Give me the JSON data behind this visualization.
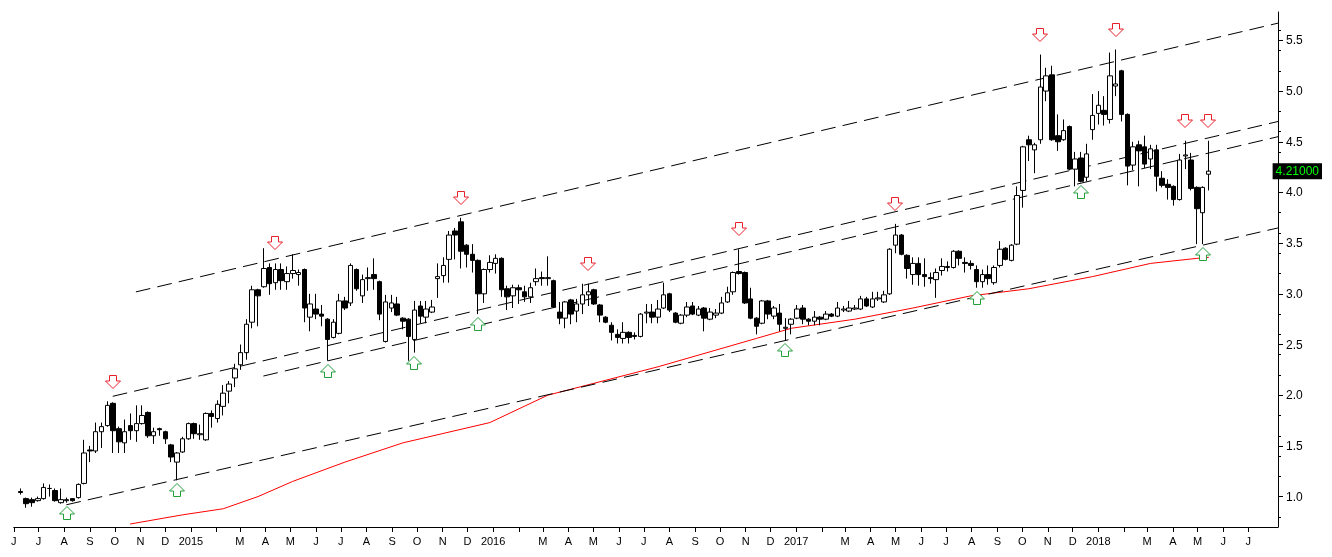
{
  "chart_data": {
    "type": "candlestick",
    "x": [
      "2014-06-09",
      "2014-06-16",
      "2014-06-23",
      "2014-06-30",
      "2014-07-07",
      "2014-07-14",
      "2014-07-21",
      "2014-07-28",
      "2014-08-04",
      "2014-08-11",
      "2014-08-18",
      "2014-08-25",
      "2014-09-01",
      "2014-09-08",
      "2014-09-15",
      "2014-09-22",
      "2014-09-29",
      "2014-10-06",
      "2014-10-13",
      "2014-10-20",
      "2014-10-27",
      "2014-11-03",
      "2014-11-10",
      "2014-11-17",
      "2014-11-24",
      "2014-12-01",
      "2014-12-08",
      "2014-12-15",
      "2014-12-22",
      "2014-12-29",
      "2015-01-05",
      "2015-01-12",
      "2015-01-19",
      "2015-01-26",
      "2015-02-02",
      "2015-02-09",
      "2015-02-16",
      "2015-02-23",
      "2015-03-02",
      "2015-03-09",
      "2015-03-16",
      "2015-03-23",
      "2015-03-30",
      "2015-04-06",
      "2015-04-13",
      "2015-04-20",
      "2015-04-27",
      "2015-05-04",
      "2015-05-11",
      "2015-05-18",
      "2015-05-25",
      "2015-06-01",
      "2015-06-08",
      "2015-06-15",
      "2015-06-22",
      "2015-06-29",
      "2015-07-06",
      "2015-07-13",
      "2015-07-20",
      "2015-07-27",
      "2015-08-03",
      "2015-08-10",
      "2015-08-17",
      "2015-08-24",
      "2015-08-31",
      "2015-09-07",
      "2015-09-14",
      "2015-09-21",
      "2015-09-28",
      "2015-10-05",
      "2015-10-12",
      "2015-10-19",
      "2015-10-26",
      "2015-11-02",
      "2015-11-09",
      "2015-11-16",
      "2015-11-23",
      "2015-11-30",
      "2015-12-07",
      "2015-12-14",
      "2015-12-21",
      "2015-12-28",
      "2016-01-04",
      "2016-01-11",
      "2016-01-18",
      "2016-01-25",
      "2016-02-01",
      "2016-02-08",
      "2016-02-15",
      "2016-02-22",
      "2016-02-29",
      "2016-03-07",
      "2016-03-14",
      "2016-03-21",
      "2016-03-28",
      "2016-04-04",
      "2016-04-11",
      "2016-04-18",
      "2016-04-25",
      "2016-05-02",
      "2016-05-09",
      "2016-05-16",
      "2016-05-23",
      "2016-05-30",
      "2016-06-06",
      "2016-06-13",
      "2016-06-20",
      "2016-06-27",
      "2016-07-04",
      "2016-07-11",
      "2016-07-18",
      "2016-07-25",
      "2016-08-01",
      "2016-08-08",
      "2016-08-15",
      "2016-08-22",
      "2016-08-29",
      "2016-09-05",
      "2016-09-12",
      "2016-09-19",
      "2016-09-26",
      "2016-10-03",
      "2016-10-10",
      "2016-10-17",
      "2016-10-24",
      "2016-10-31",
      "2016-11-07",
      "2016-11-14",
      "2016-11-21",
      "2016-11-28",
      "2016-12-05",
      "2016-12-12",
      "2016-12-19",
      "2016-12-26",
      "2017-01-02",
      "2017-01-09",
      "2017-01-16",
      "2017-01-23",
      "2017-01-30",
      "2017-02-06",
      "2017-02-13",
      "2017-02-20",
      "2017-02-27",
      "2017-03-06",
      "2017-03-13",
      "2017-03-20",
      "2017-03-27",
      "2017-04-03",
      "2017-04-10",
      "2017-04-17",
      "2017-04-24",
      "2017-05-01",
      "2017-05-08",
      "2017-05-15",
      "2017-05-22",
      "2017-05-29",
      "2017-06-05",
      "2017-06-12",
      "2017-06-19",
      "2017-06-26",
      "2017-07-03",
      "2017-07-10",
      "2017-07-17",
      "2017-07-24",
      "2017-07-31",
      "2017-08-07",
      "2017-08-14",
      "2017-08-21",
      "2017-08-28",
      "2017-09-04",
      "2017-09-11",
      "2017-09-18",
      "2017-09-25",
      "2017-10-02",
      "2017-10-09",
      "2017-10-16",
      "2017-10-23",
      "2017-10-30",
      "2017-11-06",
      "2017-11-13",
      "2017-11-20",
      "2017-11-27",
      "2017-12-04",
      "2017-12-11",
      "2017-12-18",
      "2017-12-25",
      "2018-01-01",
      "2018-01-08",
      "2018-01-15",
      "2018-01-22",
      "2018-01-29",
      "2018-02-05",
      "2018-02-12",
      "2018-02-19",
      "2018-02-26",
      "2018-03-05",
      "2018-03-12",
      "2018-03-19",
      "2018-03-26",
      "2018-04-02",
      "2018-04-09",
      "2018-04-16",
      "2018-04-23",
      "2018-04-30",
      "2018-05-07",
      "2018-05-14"
    ],
    "ohlc": [
      [
        1.05,
        1.08,
        1.02,
        1.04
      ],
      [
        0.98,
        0.99,
        0.89,
        0.93
      ],
      [
        0.97,
        0.99,
        0.9,
        0.94
      ],
      [
        0.96,
        1.0,
        0.95,
        0.98
      ],
      [
        0.98,
        1.13,
        0.97,
        1.09
      ],
      [
        1.08,
        1.12,
        1.0,
        1.08
      ],
      [
        1.06,
        1.08,
        0.95,
        0.96
      ],
      [
        0.94,
        1.08,
        0.93,
        0.97
      ],
      [
        0.96,
        0.99,
        0.94,
        0.97
      ],
      [
        0.98,
        0.98,
        0.95,
        0.96
      ],
      [
        0.99,
        1.13,
        0.98,
        1.12
      ],
      [
        1.13,
        1.56,
        1.12,
        1.43
      ],
      [
        1.46,
        1.5,
        1.34,
        1.45
      ],
      [
        1.45,
        1.73,
        1.43,
        1.64
      ],
      [
        1.64,
        1.73,
        1.48,
        1.69
      ],
      [
        1.7,
        1.94,
        1.69,
        1.9
      ],
      [
        1.92,
        1.93,
        1.43,
        1.65
      ],
      [
        1.67,
        1.69,
        1.43,
        1.54
      ],
      [
        1.53,
        1.76,
        1.43,
        1.64
      ],
      [
        1.7,
        1.82,
        1.56,
        1.65
      ],
      [
        1.65,
        1.9,
        1.54,
        1.72
      ],
      [
        1.72,
        1.9,
        1.71,
        1.8
      ],
      [
        1.83,
        1.84,
        1.58,
        1.6
      ],
      [
        1.6,
        1.68,
        1.52,
        1.64
      ],
      [
        1.67,
        1.68,
        1.6,
        1.66
      ],
      [
        1.64,
        1.65,
        1.52,
        1.57
      ],
      [
        1.51,
        1.52,
        1.34,
        1.39
      ],
      [
        1.34,
        1.44,
        1.16,
        1.43
      ],
      [
        1.44,
        1.59,
        1.43,
        1.57
      ],
      [
        1.57,
        1.73,
        1.56,
        1.72
      ],
      [
        1.72,
        1.73,
        1.57,
        1.62
      ],
      [
        1.61,
        1.71,
        1.56,
        1.62
      ],
      [
        1.56,
        1.83,
        1.55,
        1.82
      ],
      [
        1.82,
        1.85,
        1.68,
        1.79
      ],
      [
        1.77,
        1.95,
        1.73,
        1.91
      ],
      [
        1.89,
        2.1,
        1.8,
        2.02
      ],
      [
        2.04,
        2.14,
        1.92,
        2.11
      ],
      [
        2.17,
        2.31,
        2.08,
        2.26
      ],
      [
        2.3,
        2.5,
        2.25,
        2.42
      ],
      [
        2.42,
        2.75,
        2.35,
        2.7
      ],
      [
        2.72,
        3.08,
        2.66,
        3.04
      ],
      [
        3.04,
        3.05,
        2.68,
        2.98
      ],
      [
        3.07,
        3.45,
        3.06,
        3.25
      ],
      [
        3.26,
        3.3,
        2.99,
        3.1
      ],
      [
        3.11,
        3.3,
        3.04,
        3.24
      ],
      [
        3.24,
        3.3,
        3.04,
        3.13
      ],
      [
        3.12,
        3.27,
        3.04,
        3.2
      ],
      [
        3.2,
        3.39,
        3.15,
        3.23
      ],
      [
        3.19,
        3.24,
        3.08,
        3.21
      ],
      [
        3.24,
        3.25,
        2.72,
        2.86
      ],
      [
        2.77,
        3.0,
        2.63,
        2.9
      ],
      [
        2.85,
        3.0,
        2.75,
        2.8
      ],
      [
        2.8,
        2.89,
        2.68,
        2.78
      ],
      [
        2.75,
        2.76,
        2.34,
        2.55
      ],
      [
        2.57,
        2.75,
        2.56,
        2.72
      ],
      [
        2.61,
        3.0,
        2.6,
        2.93
      ],
      [
        2.93,
        2.97,
        2.84,
        2.86
      ],
      [
        2.91,
        3.3,
        2.88,
        3.28
      ],
      [
        3.24,
        3.25,
        3.03,
        3.05
      ],
      [
        2.98,
        3.19,
        2.91,
        3.14
      ],
      [
        3.15,
        3.26,
        3.03,
        3.16
      ],
      [
        3.19,
        3.35,
        3.04,
        3.15
      ],
      [
        3.12,
        3.13,
        2.74,
        2.8
      ],
      [
        2.53,
        2.99,
        2.52,
        2.92
      ],
      [
        2.86,
        2.99,
        2.82,
        2.91
      ],
      [
        2.9,
        2.97,
        2.78,
        2.79
      ],
      [
        2.76,
        2.77,
        2.65,
        2.73
      ],
      [
        2.75,
        2.76,
        2.34,
        2.58
      ],
      [
        2.55,
        2.93,
        2.42,
        2.84
      ],
      [
        2.88,
        2.93,
        2.71,
        2.78
      ],
      [
        2.77,
        2.93,
        2.71,
        2.85
      ],
      [
        2.82,
        2.94,
        2.81,
        2.87
      ],
      [
        3.15,
        3.3,
        2.96,
        3.17
      ],
      [
        3.18,
        3.36,
        3.11,
        3.28
      ],
      [
        3.34,
        3.62,
        3.11,
        3.58
      ],
      [
        3.62,
        3.65,
        3.34,
        3.58
      ],
      [
        3.71,
        3.75,
        3.25,
        3.42
      ],
      [
        3.48,
        3.49,
        3.26,
        3.39
      ],
      [
        3.39,
        3.49,
        3.21,
        3.33
      ],
      [
        3.33,
        3.34,
        2.8,
        3.0
      ],
      [
        3.0,
        3.25,
        2.91,
        3.24
      ],
      [
        3.24,
        3.38,
        3.21,
        3.31
      ],
      [
        3.3,
        3.39,
        3.2,
        3.35
      ],
      [
        3.35,
        3.36,
        2.97,
        3.04
      ],
      [
        3.05,
        3.08,
        2.84,
        2.97
      ],
      [
        2.98,
        3.09,
        2.86,
        3.06
      ],
      [
        3.06,
        3.09,
        2.9,
        3.04
      ],
      [
        3.02,
        3.08,
        2.92,
        2.97
      ],
      [
        2.97,
        3.11,
        2.91,
        3.06
      ],
      [
        3.12,
        3.25,
        3.08,
        3.15
      ],
      [
        3.16,
        3.22,
        3.08,
        3.15
      ],
      [
        3.15,
        3.37,
        3.08,
        3.16
      ],
      [
        3.13,
        3.14,
        2.86,
        2.87
      ],
      [
        2.82,
        2.92,
        2.7,
        2.76
      ],
      [
        2.76,
        2.93,
        2.66,
        2.92
      ],
      [
        2.94,
        2.95,
        2.7,
        2.8
      ],
      [
        2.83,
        2.95,
        2.72,
        2.9
      ],
      [
        2.9,
        3.1,
        2.8,
        2.99
      ],
      [
        2.99,
        3.1,
        2.88,
        3.02
      ],
      [
        3.04,
        3.05,
        2.89,
        2.9
      ],
      [
        2.89,
        2.9,
        2.72,
        2.79
      ],
      [
        2.77,
        2.78,
        2.71,
        2.72
      ],
      [
        2.69,
        2.72,
        2.54,
        2.62
      ],
      [
        2.6,
        2.65,
        2.51,
        2.57
      ],
      [
        2.56,
        2.72,
        2.51,
        2.62
      ],
      [
        2.62,
        2.63,
        2.51,
        2.57
      ],
      [
        2.59,
        2.62,
        2.55,
        2.58
      ],
      [
        2.58,
        2.81,
        2.57,
        2.8
      ],
      [
        2.81,
        2.9,
        2.71,
        2.82
      ],
      [
        2.82,
        2.9,
        2.71,
        2.77
      ],
      [
        2.77,
        2.94,
        2.71,
        2.85
      ],
      [
        2.86,
        3.11,
        2.85,
        2.99
      ],
      [
        3.0,
        3.01,
        2.82,
        2.84
      ],
      [
        2.81,
        2.82,
        2.71,
        2.72
      ],
      [
        2.71,
        2.8,
        2.7,
        2.79
      ],
      [
        2.79,
        2.92,
        2.77,
        2.87
      ],
      [
        2.88,
        2.92,
        2.79,
        2.8
      ],
      [
        2.79,
        2.88,
        2.78,
        2.85
      ],
      [
        2.86,
        2.87,
        2.63,
        2.76
      ],
      [
        2.75,
        2.86,
        2.74,
        2.82
      ],
      [
        2.79,
        2.85,
        2.76,
        2.81
      ],
      [
        2.81,
        2.97,
        2.8,
        2.91
      ],
      [
        2.92,
        3.07,
        2.91,
        3.01
      ],
      [
        3.02,
        3.22,
        2.99,
        3.21
      ],
      [
        3.22,
        3.44,
        3.19,
        3.2
      ],
      [
        3.21,
        3.22,
        2.9,
        2.91
      ],
      [
        2.95,
        3.06,
        2.75,
        2.76
      ],
      [
        2.76,
        2.77,
        2.6,
        2.68
      ],
      [
        2.71,
        2.94,
        2.7,
        2.93
      ],
      [
        2.93,
        2.94,
        2.75,
        2.8
      ],
      [
        2.78,
        2.88,
        2.75,
        2.86
      ],
      [
        2.81,
        2.9,
        2.63,
        2.7
      ],
      [
        2.66,
        2.76,
        2.54,
        2.67
      ],
      [
        2.7,
        2.76,
        2.6,
        2.75
      ],
      [
        2.76,
        2.89,
        2.75,
        2.85
      ],
      [
        2.86,
        2.89,
        2.7,
        2.75
      ],
      [
        2.75,
        2.76,
        2.69,
        2.73
      ],
      [
        2.73,
        2.83,
        2.69,
        2.77
      ],
      [
        2.77,
        2.78,
        2.69,
        2.75
      ],
      [
        2.75,
        2.83,
        2.74,
        2.8
      ],
      [
        2.8,
        2.81,
        2.77,
        2.78
      ],
      [
        2.78,
        2.92,
        2.77,
        2.86
      ],
      [
        2.84,
        2.88,
        2.82,
        2.85
      ],
      [
        2.83,
        2.93,
        2.82,
        2.86
      ],
      [
        2.85,
        2.89,
        2.84,
        2.86
      ],
      [
        2.85,
        2.98,
        2.84,
        2.95
      ],
      [
        2.95,
        2.97,
        2.87,
        2.88
      ],
      [
        2.87,
        3.02,
        2.86,
        2.95
      ],
      [
        2.95,
        3.02,
        2.93,
        2.96
      ],
      [
        2.92,
        3.03,
        2.91,
        2.99
      ],
      [
        3.0,
        3.45,
        2.99,
        3.44
      ],
      [
        3.48,
        3.69,
        3.4,
        3.58
      ],
      [
        3.58,
        3.59,
        3.38,
        3.39
      ],
      [
        3.38,
        3.39,
        3.15,
        3.25
      ],
      [
        3.19,
        3.36,
        3.09,
        3.3
      ],
      [
        3.3,
        3.36,
        3.08,
        3.19
      ],
      [
        3.19,
        3.35,
        3.07,
        3.17
      ],
      [
        3.16,
        3.21,
        3.1,
        3.15
      ],
      [
        3.14,
        3.25,
        2.96,
        3.21
      ],
      [
        3.23,
        3.35,
        3.18,
        3.27
      ],
      [
        3.26,
        3.32,
        3.22,
        3.27
      ],
      [
        3.26,
        3.43,
        3.25,
        3.42
      ],
      [
        3.42,
        3.43,
        3.28,
        3.35
      ],
      [
        3.31,
        3.36,
        3.21,
        3.3
      ],
      [
        3.3,
        3.33,
        3.24,
        3.28
      ],
      [
        3.24,
        3.28,
        3.06,
        3.12
      ],
      [
        3.12,
        3.24,
        3.06,
        3.19
      ],
      [
        3.19,
        3.28,
        3.09,
        3.15
      ],
      [
        3.11,
        3.28,
        3.09,
        3.26
      ],
      [
        3.28,
        3.52,
        3.26,
        3.44
      ],
      [
        3.45,
        3.46,
        3.33,
        3.34
      ],
      [
        3.33,
        3.49,
        3.32,
        3.48
      ],
      [
        3.49,
        4.06,
        3.48,
        3.97
      ],
      [
        4.02,
        4.46,
        3.85,
        4.45
      ],
      [
        4.52,
        4.56,
        4.31,
        4.47
      ],
      [
        4.42,
        4.49,
        4.19,
        4.47
      ],
      [
        4.52,
        5.36,
        4.48,
        5.04
      ],
      [
        5.0,
        5.23,
        4.9,
        5.15
      ],
      [
        5.16,
        5.25,
        4.51,
        4.52
      ],
      [
        4.56,
        4.77,
        4.41,
        4.5
      ],
      [
        4.52,
        4.72,
        4.51,
        4.61
      ],
      [
        4.65,
        4.66,
        4.22,
        4.23
      ],
      [
        4.23,
        4.4,
        4.06,
        4.33
      ],
      [
        4.34,
        4.4,
        4.1,
        4.11
      ],
      [
        4.15,
        4.48,
        4.11,
        4.38
      ],
      [
        4.62,
        4.97,
        4.52,
        4.76
      ],
      [
        4.78,
        5.0,
        4.67,
        4.86
      ],
      [
        4.81,
        4.95,
        4.66,
        4.77
      ],
      [
        4.72,
        5.38,
        4.68,
        5.15
      ],
      [
        5.05,
        5.41,
        4.95,
        5.07
      ],
      [
        5.2,
        5.21,
        4.7,
        4.77
      ],
      [
        4.77,
        4.78,
        4.07,
        4.26
      ],
      [
        4.27,
        4.5,
        4.22,
        4.45
      ],
      [
        4.47,
        4.51,
        4.06,
        4.41
      ],
      [
        4.45,
        4.56,
        4.24,
        4.28
      ],
      [
        4.33,
        4.47,
        4.23,
        4.43
      ],
      [
        4.42,
        4.47,
        4.01,
        4.16
      ],
      [
        4.14,
        4.21,
        4.05,
        4.07
      ],
      [
        4.08,
        4.13,
        3.93,
        4.05
      ],
      [
        4.06,
        4.07,
        3.87,
        3.93
      ],
      [
        3.93,
        4.38,
        3.92,
        4.32
      ],
      [
        4.36,
        4.51,
        4.23,
        4.37
      ],
      [
        4.32,
        4.39,
        4.02,
        4.04
      ],
      [
        4.05,
        4.06,
        3.49,
        3.84
      ],
      [
        3.8,
        4.06,
        3.49,
        4.05
      ],
      [
        4.18,
        4.51,
        4.02,
        4.21
      ]
    ],
    "series": [
      {
        "type": "line",
        "color": "#ff0000",
        "line_style": "solid",
        "x": [
          "2014-10-20",
          "2014-12-22",
          "2015-02-09",
          "2015-03-23",
          "2015-05-04",
          "2015-07-06",
          "2015-09-14",
          "2015-12-28",
          "2016-03-07",
          "2016-07-18",
          "2016-11-14",
          "2016-12-26",
          "2017-03-13",
          "2017-05-22",
          "2017-07-31",
          "2017-10-09",
          "2017-12-25",
          "2018-03-05",
          "2018-04-30",
          "2018-05-14"
        ],
        "values": [
          0.73,
          0.82,
          0.88,
          1.0,
          1.15,
          1.34,
          1.53,
          1.73,
          2.0,
          2.28,
          2.56,
          2.66,
          2.75,
          2.86,
          2.98,
          3.05,
          3.17,
          3.3,
          3.35,
          3.36
        ]
      },
      {
        "type": "line",
        "color": "#000000",
        "line_style": "dashed",
        "x": [
          "2014-10-27",
          "2018-08-06"
        ],
        "values": [
          3.02,
          5.67
        ]
      },
      {
        "type": "line",
        "color": "#000000",
        "line_style": "dashed",
        "x": [
          "2014-09-29",
          "2018-08-06"
        ],
        "values": [
          1.99,
          4.7
        ]
      },
      {
        "type": "line",
        "color": "#000000",
        "line_style": "dashed",
        "x": [
          "2015-03-30",
          "2018-08-06"
        ],
        "values": [
          2.19,
          4.55
        ]
      },
      {
        "type": "line",
        "color": "#000000",
        "line_style": "dashed",
        "x": [
          "2014-08-04",
          "2018-08-06"
        ],
        "values": [
          0.92,
          3.65
        ]
      }
    ],
    "annotations": [
      "4.21000"
    ],
    "xlim": [
      "2014-06-01",
      "2018-08-06"
    ],
    "xticks": [
      {
        "value": "2014-06-01",
        "label": "J"
      },
      {
        "value": "2014-07-01",
        "label": "J"
      },
      {
        "value": "2014-08-01",
        "label": "A"
      },
      {
        "value": "2014-09-01",
        "label": "S"
      },
      {
        "value": "2014-10-01",
        "label": "O"
      },
      {
        "value": "2014-11-01",
        "label": "N"
      },
      {
        "value": "2014-12-01",
        "label": "D"
      },
      {
        "value": "2015-01-01",
        "label": "2015"
      },
      {
        "value": "2015-02-01",
        "label": null
      },
      {
        "value": "2015-03-01",
        "label": "M"
      },
      {
        "value": "2015-04-01",
        "label": "A"
      },
      {
        "value": "2015-05-01",
        "label": "M"
      },
      {
        "value": "2015-06-01",
        "label": "J"
      },
      {
        "value": "2015-07-01",
        "label": "J"
      },
      {
        "value": "2015-08-01",
        "label": "A"
      },
      {
        "value": "2015-09-01",
        "label": "S"
      },
      {
        "value": "2015-10-01",
        "label": "O"
      },
      {
        "value": "2015-11-01",
        "label": "N"
      },
      {
        "value": "2015-12-01",
        "label": "D"
      },
      {
        "value": "2016-01-01",
        "label": "2016"
      },
      {
        "value": "2016-02-01",
        "label": null
      },
      {
        "value": "2016-03-01",
        "label": "M"
      },
      {
        "value": "2016-04-01",
        "label": "A"
      },
      {
        "value": "2016-05-01",
        "label": "M"
      },
      {
        "value": "2016-06-01",
        "label": "J"
      },
      {
        "value": "2016-07-01",
        "label": "J"
      },
      {
        "value": "2016-08-01",
        "label": "A"
      },
      {
        "value": "2016-09-01",
        "label": "S"
      },
      {
        "value": "2016-10-01",
        "label": "O"
      },
      {
        "value": "2016-11-01",
        "label": "N"
      },
      {
        "value": "2016-12-01",
        "label": "D"
      },
      {
        "value": "2017-01-01",
        "label": "2017"
      },
      {
        "value": "2017-02-01",
        "label": null
      },
      {
        "value": "2017-03-01",
        "label": "M"
      },
      {
        "value": "2017-04-01",
        "label": "A"
      },
      {
        "value": "2017-05-01",
        "label": "M"
      },
      {
        "value": "2017-06-01",
        "label": "J"
      },
      {
        "value": "2017-07-01",
        "label": "J"
      },
      {
        "value": "2017-08-01",
        "label": "A"
      },
      {
        "value": "2017-09-01",
        "label": "S"
      },
      {
        "value": "2017-10-01",
        "label": "O"
      },
      {
        "value": "2017-11-01",
        "label": "N"
      },
      {
        "value": "2017-12-01",
        "label": "D"
      },
      {
        "value": "2018-01-01",
        "label": "2018"
      },
      {
        "value": "2018-02-01",
        "label": null
      },
      {
        "value": "2018-03-01",
        "label": "M"
      },
      {
        "value": "2018-04-01",
        "label": "A"
      },
      {
        "value": "2018-05-01",
        "label": "M"
      },
      {
        "value": "2018-06-01",
        "label": "J"
      },
      {
        "value": "2018-07-01",
        "label": "J"
      }
    ],
    "ylim": [
      0.7,
      5.78
    ],
    "yticks": [
      {
        "value": 1,
        "label": "1.0"
      },
      {
        "value": 1.5,
        "label": "1.5"
      },
      {
        "value": 2,
        "label": "2.0"
      },
      {
        "value": 2.5,
        "label": "2.5"
      },
      {
        "value": 3,
        "label": "3.0"
      },
      {
        "value": 3.5,
        "label": "3.5"
      },
      {
        "value": 4,
        "label": "4.0"
      },
      {
        "value": 4.5,
        "label": "4.5"
      },
      {
        "value": 5,
        "label": "5.0"
      },
      {
        "value": 5.5,
        "label": "5.5"
      }
    ]
  }
}
